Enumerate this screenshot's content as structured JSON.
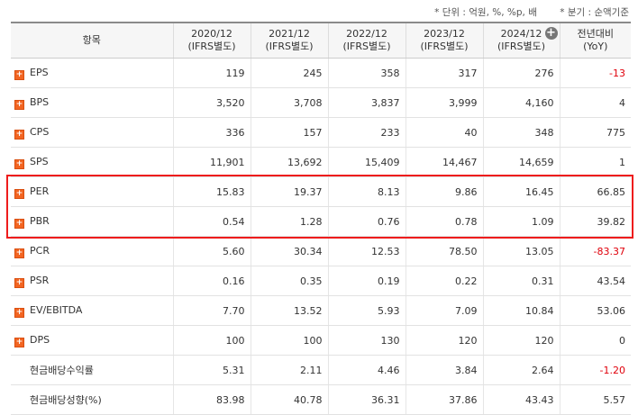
{
  "notes": {
    "unit": "* 단위 : 억원, %, %p, 배",
    "quarter": "* 분기 : 순액기준"
  },
  "table": {
    "header": {
      "item": "항목",
      "periods": [
        {
          "period": "2020/12",
          "basis": "(IFRS별도)"
        },
        {
          "period": "2021/12",
          "basis": "(IFRS별도)"
        },
        {
          "period": "2022/12",
          "basis": "(IFRS별도)"
        },
        {
          "period": "2023/12",
          "basis": "(IFRS별도)"
        },
        {
          "period": "2024/12",
          "basis": "(IFRS별도)"
        }
      ],
      "yoy": {
        "period": "전년대비",
        "basis": "(YoY)"
      }
    },
    "rows": [
      {
        "label": "EPS",
        "expandable": true,
        "cells": [
          "119",
          "245",
          "358",
          "317",
          "276",
          "-13"
        ]
      },
      {
        "label": "BPS",
        "expandable": true,
        "cells": [
          "3,520",
          "3,708",
          "3,837",
          "3,999",
          "4,160",
          "4"
        ]
      },
      {
        "label": "CPS",
        "expandable": true,
        "cells": [
          "336",
          "157",
          "233",
          "40",
          "348",
          "775"
        ]
      },
      {
        "label": "SPS",
        "expandable": true,
        "cells": [
          "11,901",
          "13,692",
          "15,409",
          "14,467",
          "14,659",
          "1"
        ]
      },
      {
        "label": "PER",
        "expandable": true,
        "cells": [
          "15.83",
          "19.37",
          "8.13",
          "9.86",
          "16.45",
          "66.85"
        ]
      },
      {
        "label": "PBR",
        "expandable": true,
        "cells": [
          "0.54",
          "1.28",
          "0.76",
          "0.78",
          "1.09",
          "39.82"
        ]
      },
      {
        "label": "PCR",
        "expandable": true,
        "cells": [
          "5.60",
          "30.34",
          "12.53",
          "78.50",
          "13.05",
          "-83.37"
        ]
      },
      {
        "label": "PSR",
        "expandable": true,
        "cells": [
          "0.16",
          "0.35",
          "0.19",
          "0.22",
          "0.31",
          "43.54"
        ]
      },
      {
        "label": "EV/EBITDA",
        "expandable": true,
        "cells": [
          "7.70",
          "13.52",
          "5.93",
          "7.09",
          "10.84",
          "53.06"
        ]
      },
      {
        "label": "DPS",
        "expandable": true,
        "cells": [
          "100",
          "100",
          "130",
          "120",
          "120",
          "0"
        ]
      },
      {
        "label": "현금배당수익률",
        "expandable": false,
        "cells": [
          "5.31",
          "2.11",
          "4.46",
          "3.84",
          "2.64",
          "-1.20"
        ]
      },
      {
        "label": "현금배당성향(%)",
        "expandable": false,
        "cells": [
          "83.98",
          "40.78",
          "36.31",
          "37.86",
          "43.43",
          "5.57"
        ]
      }
    ],
    "highlight_rows": [
      4,
      5
    ]
  }
}
